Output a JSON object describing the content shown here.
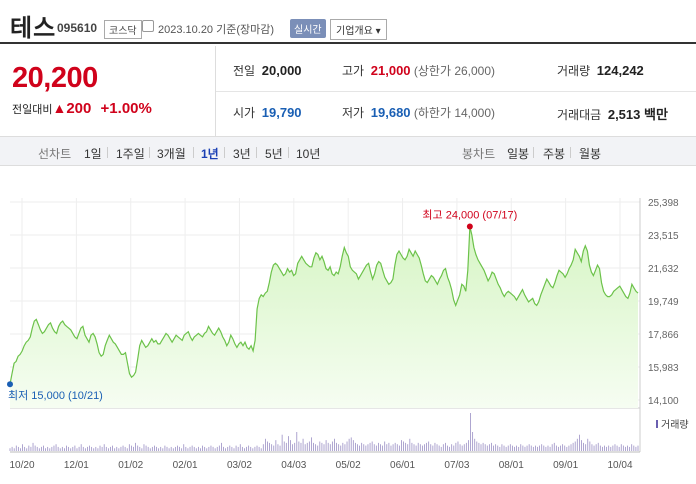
{
  "header": {
    "name": "테스",
    "code": "095610",
    "market": "코스닥",
    "date": "2023.10.20  기준(장마감)",
    "live_label": "실시간",
    "corp_label": "기업개요 ▾"
  },
  "quote": {
    "price": "20,200",
    "change_label": "전일대비",
    "change_arrow": "▲",
    "change": "200",
    "change_pct": "+1.00%",
    "prev_close_label": "전일",
    "prev_close": "20,000",
    "high_label": "고가",
    "high": "21,000",
    "upper_limit": "(상한가 26,000)",
    "volume_label": "거래량",
    "volume": "124,242",
    "open_label": "시가",
    "open": "19,790",
    "low_label": "저가",
    "low": "19,680",
    "lower_limit": "(하한가 14,000)",
    "amount_label": "거래대금",
    "amount": "2,513 백만"
  },
  "tabs": {
    "line_label": "선차트",
    "line_periods": [
      "1일",
      "1주일",
      "3개월",
      "1년",
      "3년",
      "5년",
      "10년"
    ],
    "selected": "1년",
    "candle_label": "봉차트",
    "candle_periods": [
      "일봉",
      "주봉",
      "월봉"
    ]
  },
  "colors": {
    "up": "#d0021b",
    "down": "#1a5fb4",
    "line": "#6cc24a",
    "fill_top": "#d6f5c4"
  },
  "chart_data": {
    "type": "area",
    "y_ticks": [
      "25,398",
      "23,515",
      "21,632",
      "19,749",
      "17,866",
      "15,983",
      "14,100"
    ],
    "ylim": [
      14100,
      25398
    ],
    "x_labels": [
      "10/20",
      "12/01",
      "01/02",
      "02/01",
      "03/02",
      "04/03",
      "05/02",
      "06/01",
      "07/03",
      "08/01",
      "09/01",
      "10/04"
    ],
    "high_annotation": "최고 24,000 (07/17)",
    "low_annotation": "최저 15,000 (10/21)",
    "volume_label": "거래량",
    "series": [
      {
        "values": [
          15000,
          15600,
          16200,
          16300,
          16600,
          16700,
          16900,
          17200,
          17400,
          17500,
          17700,
          18200,
          18600,
          18700,
          18400,
          18100,
          17900,
          18000,
          18200,
          18400,
          18500,
          18200,
          18000,
          17900,
          18300,
          18500,
          18600,
          18400,
          18300,
          18200,
          18100,
          17900,
          17700,
          17600,
          17900,
          18200,
          18300,
          17800,
          17600,
          17400,
          17800,
          17900,
          17700,
          17300,
          16800,
          16600,
          16700,
          17200,
          17500,
          17800,
          17600,
          17400,
          17300,
          17100,
          16900,
          16700,
          16700,
          16800,
          16200,
          15600,
          15400,
          15500,
          15700,
          16400,
          17200,
          17500,
          17300,
          17100,
          17200,
          17400,
          17600,
          17400,
          17500,
          17300,
          17300,
          17500,
          17700,
          17900,
          17800,
          17600,
          17400,
          17600,
          17800,
          17700,
          17600,
          17500,
          17800,
          17900,
          18000,
          17700,
          17500,
          17700,
          17800,
          17900,
          17800,
          17700,
          17900,
          18000,
          18300,
          18100,
          17900,
          17800,
          18000,
          18200,
          18000,
          17700,
          17500,
          17200,
          17400,
          17800,
          17600,
          17300,
          17100,
          17300,
          17400,
          17200,
          17400,
          17100,
          17000,
          17200,
          16900,
          17500,
          19300,
          19900,
          20100,
          20000,
          20200,
          20300,
          20800,
          21400,
          21800,
          21900,
          21800,
          21600,
          21400,
          21200,
          21300,
          21600,
          21400,
          21500,
          21200,
          21300,
          21900,
          22100,
          22300,
          22100,
          21900,
          21800,
          21700,
          21700,
          22200,
          22500,
          22400,
          22100,
          22300,
          22000,
          21600,
          21500,
          21700,
          21300,
          21200,
          21400,
          21300,
          21700,
          22300,
          22800,
          22500,
          22300,
          21700,
          21500,
          21400,
          21300,
          21000,
          21200,
          21400,
          21600,
          21800,
          21900,
          21400,
          21000,
          21300,
          21800,
          22000,
          21900,
          21500,
          21100,
          20900,
          20700,
          20800,
          21000,
          21800,
          22400,
          22600,
          22400,
          22200,
          22100,
          22300,
          22700,
          22500,
          22300,
          22600,
          22400,
          22200,
          21800,
          21300,
          20900,
          20800,
          21000,
          21200,
          21100,
          20900,
          20700,
          21000,
          21200,
          21500,
          21600,
          21100,
          20800,
          20400,
          19800,
          19500,
          19800,
          20100,
          20700,
          20600,
          20300,
          21500,
          24000,
          23500,
          22800,
          22400,
          22100,
          21900,
          21700,
          21500,
          21200,
          20900,
          21100,
          21400,
          21300,
          21000,
          20700,
          20500,
          20200,
          20000,
          20200,
          20300,
          20200,
          20100,
          20000,
          19800,
          20000,
          20200,
          20400,
          20100,
          19900,
          19700,
          19800,
          19900,
          19600,
          19500,
          19700,
          20100,
          20400,
          20700,
          21000,
          20800,
          20600,
          20500,
          20800,
          21200,
          21500,
          21400,
          21300,
          21100,
          21300,
          21600,
          21800,
          22100,
          22700,
          22500,
          22300,
          22000,
          22600,
          22900,
          22600,
          21800,
          21400,
          21200,
          21500,
          21800,
          21600,
          20800,
          20300,
          20100,
          20000,
          20000,
          20100,
          20300,
          20400,
          20500,
          20600,
          20400,
          20200,
          20000,
          19900,
          20200,
          20700,
          20500,
          20300,
          20200
        ]
      }
    ],
    "volume": [
      2,
      3,
      2,
      4,
      3,
      2,
      5,
      3,
      2,
      4,
      3,
      6,
      4,
      3,
      2,
      3,
      4,
      2,
      3,
      2,
      3,
      4,
      5,
      3,
      2,
      3,
      2,
      4,
      3,
      2,
      3,
      4,
      2,
      3,
      5,
      3,
      2,
      3,
      4,
      3,
      2,
      3,
      2,
      4,
      3,
      5,
      3,
      2,
      3,
      4,
      2,
      3,
      2,
      3,
      4,
      3,
      2,
      5,
      4,
      3,
      6,
      4,
      3,
      2,
      5,
      4,
      3,
      2,
      3,
      4,
      3,
      2,
      3,
      2,
      4,
      3,
      2,
      3,
      2,
      3,
      4,
      3,
      2,
      5,
      3,
      2,
      3,
      4,
      3,
      2,
      3,
      2,
      4,
      3,
      2,
      3,
      4,
      3,
      2,
      3,
      4,
      6,
      3,
      2,
      3,
      4,
      3,
      2,
      4,
      3,
      5,
      3,
      2,
      3,
      4,
      3,
      2,
      3,
      4,
      3,
      2,
      5,
      9,
      7,
      6,
      5,
      4,
      8,
      5,
      4,
      12,
      7,
      6,
      11,
      8,
      5,
      6,
      14,
      7,
      6,
      9,
      5,
      6,
      7,
      10,
      6,
      5,
      4,
      7,
      6,
      5,
      8,
      6,
      5,
      7,
      9,
      6,
      5,
      4,
      6,
      5,
      7,
      9,
      10,
      8,
      6,
      5,
      4,
      6,
      5,
      4,
      5,
      6,
      7,
      5,
      4,
      6,
      5,
      4,
      7,
      5,
      6,
      4,
      5,
      6,
      5,
      4,
      8,
      7,
      6,
      5,
      9,
      6,
      5,
      4,
      6,
      5,
      4,
      5,
      6,
      7,
      5,
      4,
      6,
      5,
      4,
      3,
      5,
      6,
      4,
      3,
      5,
      4,
      6,
      7,
      5,
      4,
      5,
      6,
      8,
      28,
      14,
      9,
      7,
      6,
      5,
      6,
      5,
      4,
      5,
      6,
      4,
      5,
      4,
      3,
      5,
      4,
      3,
      4,
      5,
      4,
      3,
      4,
      3,
      5,
      4,
      3,
      4,
      5,
      4,
      3,
      4,
      3,
      4,
      5,
      4,
      3,
      4,
      3,
      5,
      6,
      4,
      3,
      4,
      5,
      4,
      3,
      4,
      5,
      6,
      7,
      9,
      12,
      8,
      6,
      5,
      9,
      7,
      5,
      4,
      5,
      6,
      4,
      3,
      4,
      3,
      4,
      3,
      4,
      5,
      4,
      3,
      5,
      4,
      3,
      4,
      3,
      5,
      4,
      3,
      4
    ]
  }
}
